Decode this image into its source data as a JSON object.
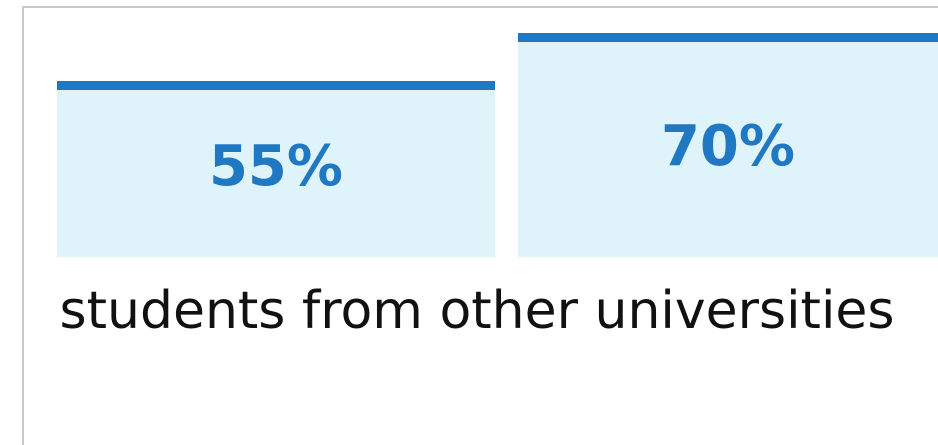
{
  "chart_data": {
    "type": "bar",
    "categories": [
      "",
      ""
    ],
    "values": [
      55,
      70
    ],
    "value_labels": [
      "55%",
      "70%"
    ],
    "ylim": [
      0,
      100
    ],
    "grid": false,
    "legend": "none",
    "colors": {
      "bar_fill": "#dff3fb",
      "bar_cap": "#1f78c1",
      "value_text": "#1f78c1"
    },
    "caption": "students from other universities"
  }
}
